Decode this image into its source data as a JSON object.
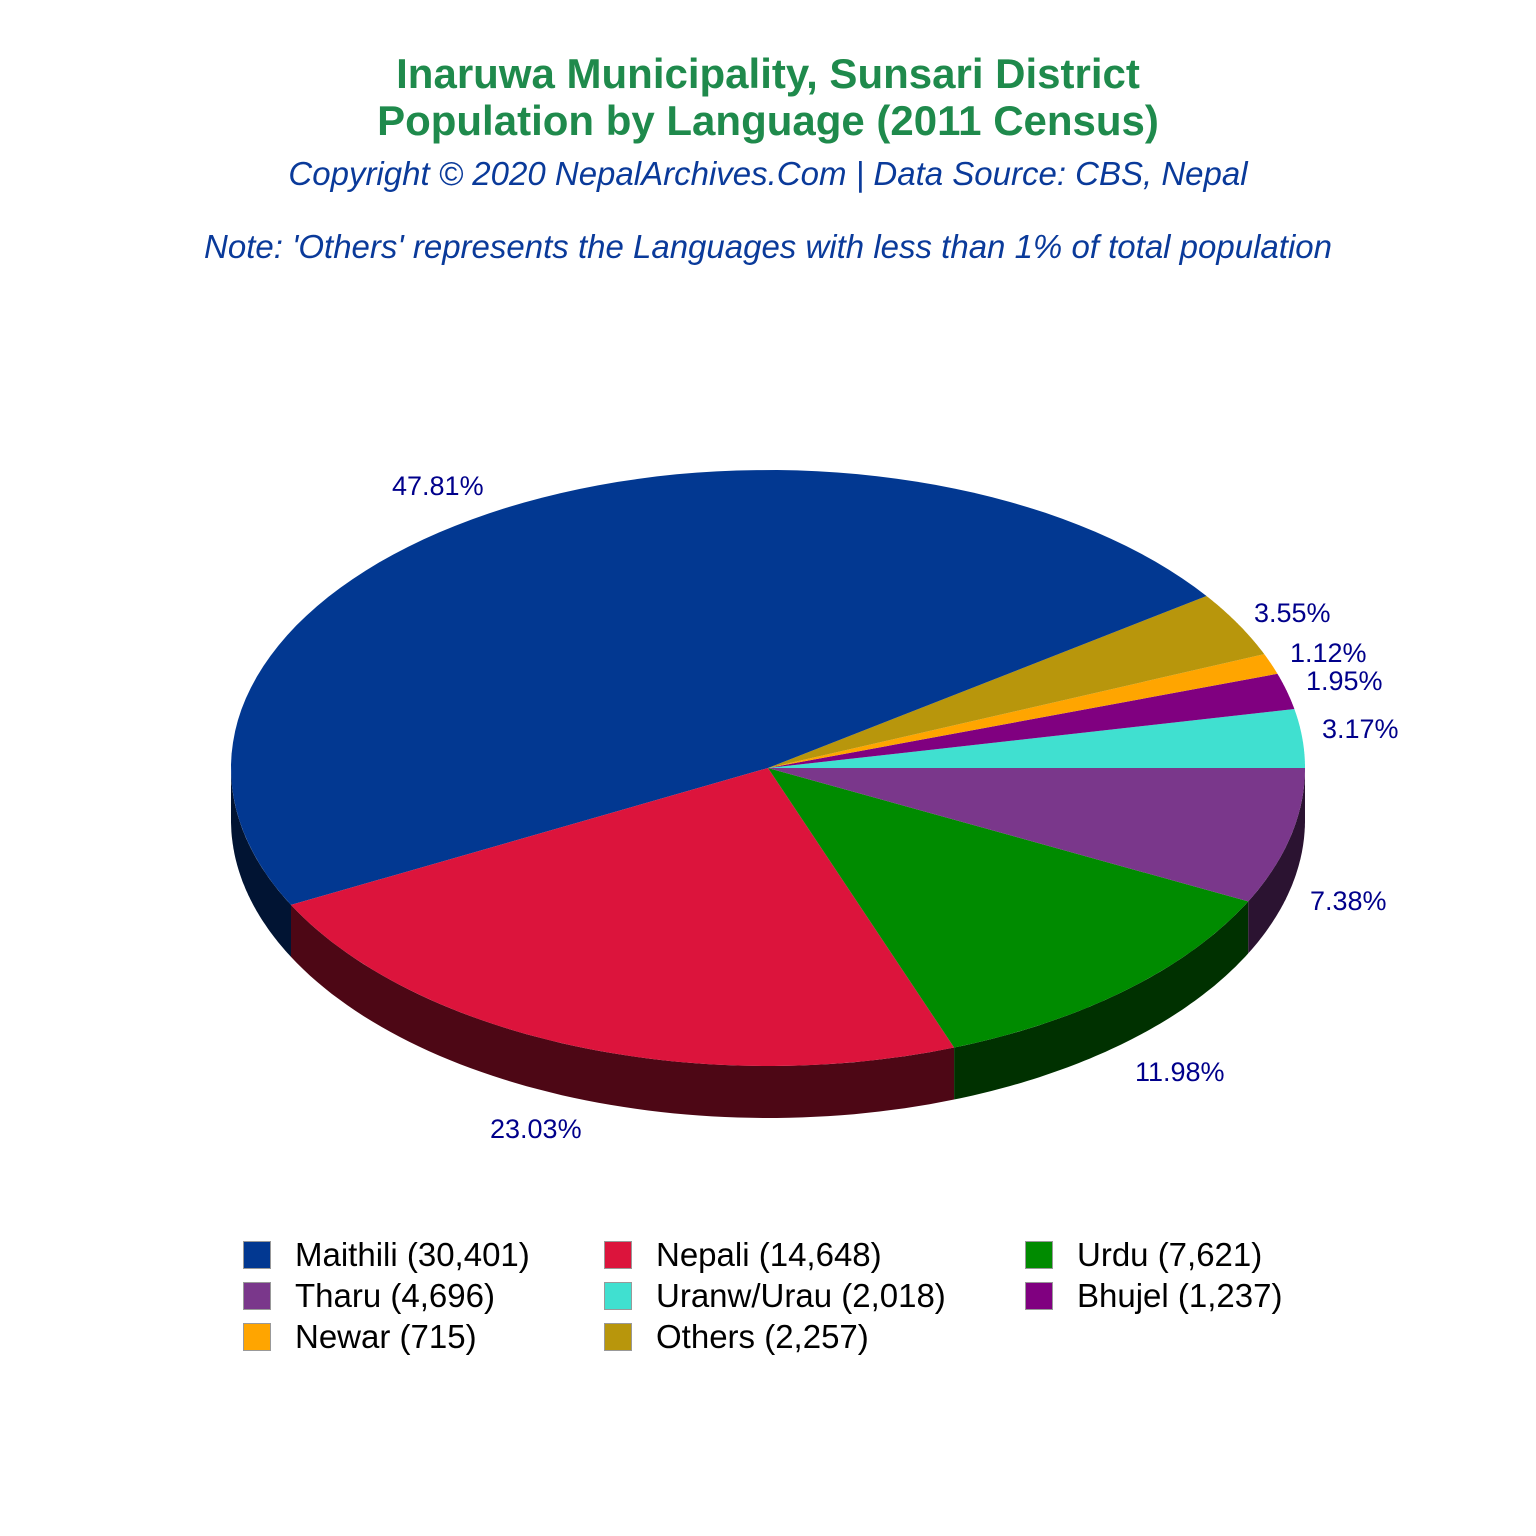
{
  "header": {
    "title_line1": "Inaruwa Municipality, Sunsari District",
    "title_line2": "Population by Language (2011 Census)",
    "copyright": "Copyright © 2020 NepalArchives.Com | Data Source: CBS, Nepal",
    "note": "Note: 'Others' represents the Languages with less than 1% of total population"
  },
  "chart_data": {
    "type": "pie",
    "title": "Inaruwa Municipality, Sunsari District Population by Language (2011 Census)",
    "style": "3d-pie",
    "categories": [
      "Maithili",
      "Nepali",
      "Urdu",
      "Tharu",
      "Uranw/Urau",
      "Bhujel",
      "Newar",
      "Others"
    ],
    "values": [
      30401,
      14648,
      7621,
      4696,
      2018,
      1237,
      715,
      2257
    ],
    "percentages": [
      47.81,
      23.03,
      11.98,
      7.38,
      3.17,
      1.95,
      1.12,
      3.55
    ],
    "percent_labels": [
      "47.81%",
      "23.03%",
      "11.98%",
      "7.38%",
      "3.17%",
      "1.95%",
      "1.12%",
      "3.55%"
    ],
    "colors": [
      "#023891",
      "#dc143c",
      "#008b00",
      "#7a378b",
      "#40e0d0",
      "#800080",
      "#ffa500",
      "#b8960c"
    ],
    "legend_labels": [
      "Maithili (30,401)",
      "Nepali (14,648)",
      "Urdu (7,621)",
      "Tharu (4,696)",
      "Uranw/Urau (2,018)",
      "Bhujel (1,237)",
      "Newar (715)",
      "Others (2,257)"
    ],
    "legend_position": "bottom"
  },
  "colors": {
    "title": "#1f8a4c",
    "subtitle": "#0a3a9a",
    "label": "#00008b"
  }
}
